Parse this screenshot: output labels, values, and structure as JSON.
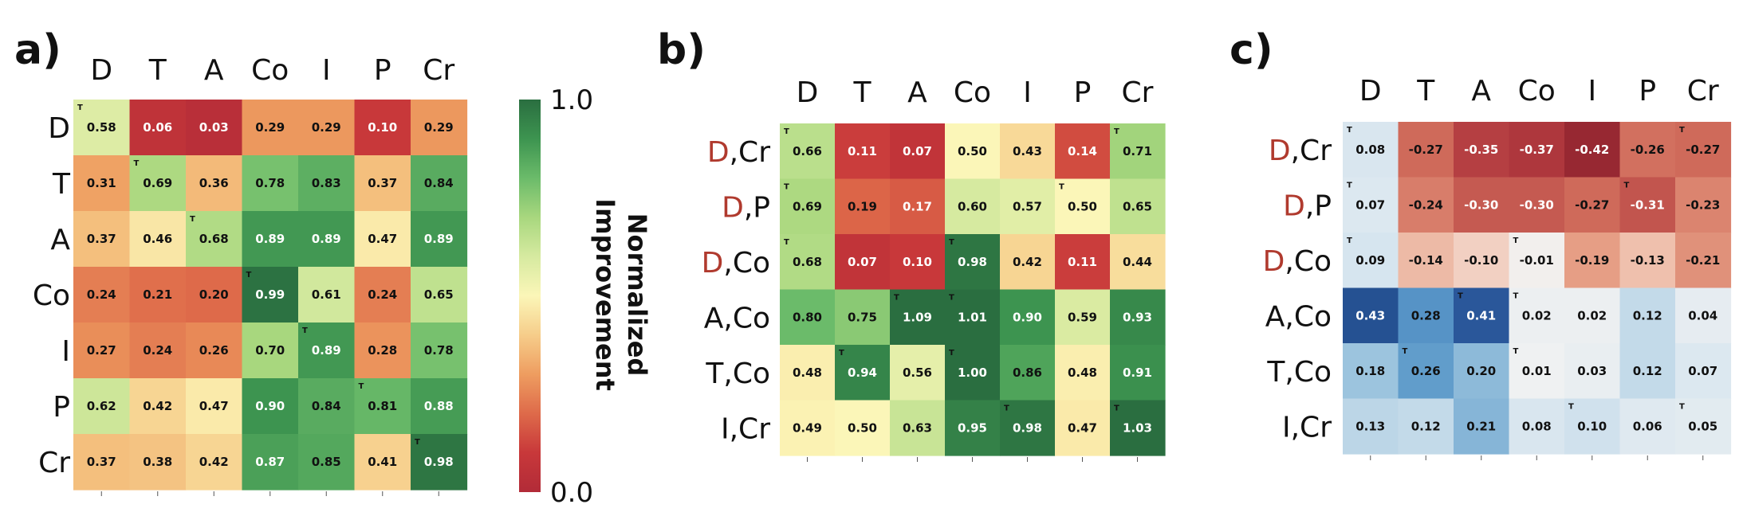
{
  "chart_data": [
    {
      "type": "heatmap",
      "panel": "a)",
      "columns": [
        "D",
        "T",
        "A",
        "Co",
        "I",
        "P",
        "Cr"
      ],
      "rows": [
        {
          "parts": [
            {
              "text": "D",
              "highlight": false
            }
          ]
        },
        {
          "parts": [
            {
              "text": "T",
              "highlight": false
            }
          ]
        },
        {
          "parts": [
            {
              "text": "A",
              "highlight": false
            }
          ]
        },
        {
          "parts": [
            {
              "text": "Co",
              "highlight": false
            }
          ]
        },
        {
          "parts": [
            {
              "text": "I",
              "highlight": false
            }
          ]
        },
        {
          "parts": [
            {
              "text": "P",
              "highlight": false
            }
          ]
        },
        {
          "parts": [
            {
              "text": "Cr",
              "highlight": false
            }
          ]
        }
      ],
      "values": [
        [
          0.58,
          0.06,
          0.03,
          0.29,
          0.29,
          0.1,
          0.29
        ],
        [
          0.31,
          0.69,
          0.36,
          0.78,
          0.83,
          0.37,
          0.84
        ],
        [
          0.37,
          0.46,
          0.68,
          0.89,
          0.89,
          0.47,
          0.89
        ],
        [
          0.24,
          0.21,
          0.2,
          0.99,
          0.61,
          0.24,
          0.65
        ],
        [
          0.27,
          0.24,
          0.26,
          0.7,
          0.89,
          0.28,
          0.78
        ],
        [
          0.62,
          0.42,
          0.47,
          0.9,
          0.84,
          0.81,
          0.88
        ],
        [
          0.37,
          0.38,
          0.42,
          0.87,
          0.85,
          0.41,
          0.98
        ]
      ],
      "markers": [
        [
          0,
          0
        ],
        [
          1,
          1
        ],
        [
          2,
          2
        ],
        [
          3,
          3
        ],
        [
          4,
          4
        ],
        [
          5,
          5
        ],
        [
          6,
          6
        ]
      ],
      "colormap": "RdYlGn",
      "vmin": 0.0,
      "vmax": 1.0,
      "colorbar": {
        "min_label": "0.0",
        "max_label": "1.0",
        "title_line1": "Normalized",
        "title_line2": "Improvement"
      }
    },
    {
      "type": "heatmap",
      "panel": "b)",
      "columns": [
        "D",
        "T",
        "A",
        "Co",
        "I",
        "P",
        "Cr"
      ],
      "rows": [
        {
          "parts": [
            {
              "text": "D",
              "highlight": true
            },
            {
              "text": ",Cr",
              "highlight": false
            }
          ]
        },
        {
          "parts": [
            {
              "text": "D",
              "highlight": true
            },
            {
              "text": ",P",
              "highlight": false
            }
          ]
        },
        {
          "parts": [
            {
              "text": "D",
              "highlight": true
            },
            {
              "text": ",Co",
              "highlight": false
            }
          ]
        },
        {
          "parts": [
            {
              "text": "A,Co",
              "highlight": false
            }
          ]
        },
        {
          "parts": [
            {
              "text": "T,Co",
              "highlight": false
            }
          ]
        },
        {
          "parts": [
            {
              "text": "I,Cr",
              "highlight": false
            }
          ]
        }
      ],
      "values": [
        [
          0.66,
          0.11,
          0.07,
          0.5,
          0.43,
          0.14,
          0.71
        ],
        [
          0.69,
          0.19,
          0.17,
          0.6,
          0.57,
          0.5,
          0.65
        ],
        [
          0.68,
          0.07,
          0.1,
          0.98,
          0.42,
          0.11,
          0.44
        ],
        [
          0.8,
          0.75,
          1.09,
          1.01,
          0.9,
          0.59,
          0.93
        ],
        [
          0.48,
          0.94,
          0.56,
          1.0,
          0.86,
          0.48,
          0.91
        ],
        [
          0.49,
          0.5,
          0.63,
          0.95,
          0.98,
          0.47,
          1.03
        ]
      ],
      "markers": [
        [
          0,
          0
        ],
        [
          0,
          6
        ],
        [
          1,
          0
        ],
        [
          1,
          5
        ],
        [
          2,
          0
        ],
        [
          2,
          3
        ],
        [
          3,
          2
        ],
        [
          3,
          3
        ],
        [
          4,
          1
        ],
        [
          4,
          3
        ],
        [
          5,
          4
        ],
        [
          5,
          6
        ]
      ],
      "colormap": "RdYlGn",
      "vmin": 0.0,
      "vmax": 1.0
    },
    {
      "type": "heatmap",
      "panel": "c)",
      "columns": [
        "D",
        "T",
        "A",
        "Co",
        "I",
        "P",
        "Cr"
      ],
      "rows": [
        {
          "parts": [
            {
              "text": "D",
              "highlight": true
            },
            {
              "text": ",Cr",
              "highlight": false
            }
          ]
        },
        {
          "parts": [
            {
              "text": "D",
              "highlight": true
            },
            {
              "text": ",P",
              "highlight": false
            }
          ]
        },
        {
          "parts": [
            {
              "text": "D",
              "highlight": true
            },
            {
              "text": ",Co",
              "highlight": false
            }
          ]
        },
        {
          "parts": [
            {
              "text": "A,Co",
              "highlight": false
            }
          ]
        },
        {
          "parts": [
            {
              "text": "T,Co",
              "highlight": false
            }
          ]
        },
        {
          "parts": [
            {
              "text": "I,Cr",
              "highlight": false
            }
          ]
        }
      ],
      "values": [
        [
          0.08,
          -0.27,
          -0.35,
          -0.37,
          -0.42,
          -0.26,
          -0.27
        ],
        [
          0.07,
          -0.24,
          -0.3,
          -0.3,
          -0.27,
          -0.31,
          -0.23
        ],
        [
          0.09,
          -0.14,
          -0.1,
          -0.01,
          -0.19,
          -0.13,
          -0.21
        ],
        [
          0.43,
          0.28,
          0.41,
          0.02,
          0.02,
          0.12,
          0.04
        ],
        [
          0.18,
          0.26,
          0.2,
          0.01,
          0.03,
          0.12,
          0.07
        ],
        [
          0.13,
          0.12,
          0.21,
          0.08,
          0.1,
          0.06,
          0.05
        ]
      ],
      "markers": [
        [
          0,
          0
        ],
        [
          0,
          6
        ],
        [
          1,
          0
        ],
        [
          1,
          5
        ],
        [
          2,
          0
        ],
        [
          2,
          3
        ],
        [
          3,
          2
        ],
        [
          3,
          3
        ],
        [
          4,
          1
        ],
        [
          4,
          3
        ],
        [
          5,
          4
        ],
        [
          5,
          6
        ]
      ],
      "colormap": "RdBu",
      "vmin": -0.45,
      "vmax": 0.45
    }
  ],
  "marker_text": "T",
  "colors": {
    "highlight_label": "#b03a2e",
    "text_dark": "#111111",
    "text_light": "#ffffff"
  }
}
